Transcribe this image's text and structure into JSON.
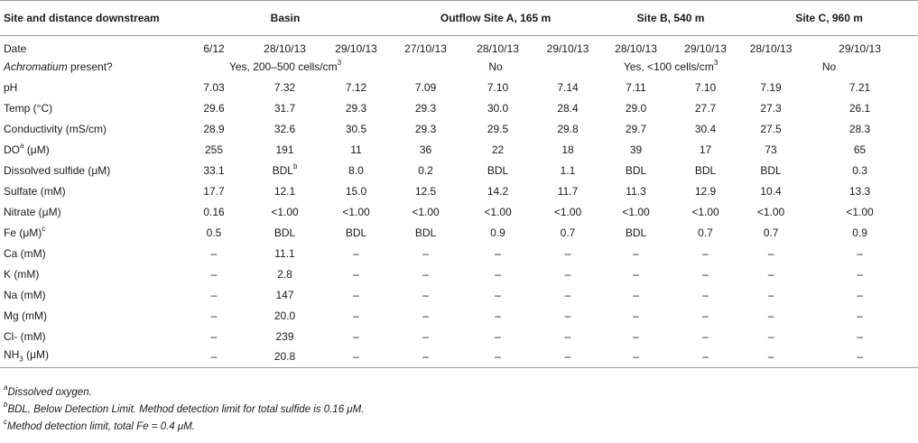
{
  "header": {
    "col0": "Site and distance downstream",
    "groups": [
      "Basin",
      "Outflow Site A, 165 m",
      "Site B, 540 m",
      "Site C, 960 m"
    ]
  },
  "rows": [
    {
      "label": "Date",
      "cells": [
        "6/12",
        "28/10/13",
        "29/10/13",
        "27/10/13",
        "28/10/13",
        "29/10/13",
        "28/10/13",
        "29/10/13",
        "28/10/13",
        "29/10/13"
      ]
    },
    {
      "label": "Achromatium present?",
      "merged": [
        "Yes, 200–500 cells/cm",
        "No",
        "Yes, <100 cells/cm",
        "No"
      ],
      "merged_sup": "3"
    },
    {
      "label": "pH",
      "cells": [
        "7.03",
        "7.32",
        "7.12",
        "7.09",
        "7.10",
        "7.14",
        "7.11",
        "7.10",
        "7.19",
        "7.21"
      ]
    },
    {
      "label": "Temp (°C)",
      "cells": [
        "29.6",
        "31.7",
        "29.3",
        "29.3",
        "30.0",
        "28.4",
        "29.0",
        "27.7",
        "27.3",
        "26.1"
      ]
    },
    {
      "label": "Conductivity (mS/cm)",
      "cells": [
        "28.9",
        "32.6",
        "30.5",
        "29.3",
        "29.5",
        "29.8",
        "29.7",
        "30.4",
        "27.5",
        "28.3"
      ]
    },
    {
      "label_pre": "DO",
      "label_sup": "a",
      "label_post": " (μM)",
      "cells": [
        "255",
        "191",
        "11",
        "36",
        "22",
        "18",
        "39",
        "17",
        "73",
        "65"
      ]
    },
    {
      "label": "Dissolved sulfide (μM)",
      "cells": [
        "33.1",
        "BDL",
        "8.0",
        "0.2",
        "BDL",
        "1.1",
        "BDL",
        "BDL",
        "BDL",
        "0.3"
      ],
      "cell_sup": "b"
    },
    {
      "label": "Sulfate (mM)",
      "cells": [
        "17.7",
        "12.1",
        "15.0",
        "12.5",
        "14.2",
        "11.7",
        "11.3",
        "12.9",
        "10.4",
        "13.3"
      ]
    },
    {
      "label": "Nitrate (μM)",
      "cells": [
        "0.16",
        "<1.00",
        "<1.00",
        "<1.00",
        "<1.00",
        "<1.00",
        "<1.00",
        "<1.00",
        "<1.00",
        "<1.00"
      ]
    },
    {
      "label_pre": "Fe (μM)",
      "label_sup": "c",
      "label_post": "",
      "cells": [
        "0.5",
        "BDL",
        "BDL",
        "BDL",
        "0.9",
        "0.7",
        "BDL",
        "0.7",
        "0.7",
        "0.9"
      ]
    },
    {
      "label": "Ca (mM)",
      "cells": [
        "–",
        "11.1",
        "–",
        "–",
        "–",
        "–",
        "–",
        "–",
        "–",
        "–"
      ]
    },
    {
      "label": "K (mM)",
      "cells": [
        "–",
        "2.8",
        "–",
        "–",
        "–",
        "–",
        "–",
        "–",
        "–",
        "–"
      ]
    },
    {
      "label": "Na (mM)",
      "cells": [
        "–",
        "147",
        "–",
        "–",
        "–",
        "–",
        "–",
        "–",
        "–",
        "–"
      ]
    },
    {
      "label": "Mg (mM)",
      "cells": [
        "–",
        "20.0",
        "–",
        "–",
        "–",
        "–",
        "–",
        "–",
        "–",
        "–"
      ]
    },
    {
      "label": "Cl- (mM)",
      "cells": [
        "–",
        "239",
        "–",
        "–",
        "–",
        "–",
        "–",
        "–",
        "–",
        "–"
      ]
    },
    {
      "label_pre": "NH",
      "label_sub": "3",
      "label_post": " (μM)",
      "cells": [
        "–",
        "20.8",
        "–",
        "–",
        "–",
        "–",
        "–",
        "–",
        "–",
        "–"
      ]
    }
  ],
  "footnotes": [
    {
      "mark": "a",
      "text": "Dissolved oxygen."
    },
    {
      "mark": "b",
      "text": "BDL, Below Detection Limit. Method detection limit for total sulfide is 0.16 μM."
    },
    {
      "mark": "c",
      "text": "Method detection limit, total Fe = 0.4 μM."
    }
  ]
}
